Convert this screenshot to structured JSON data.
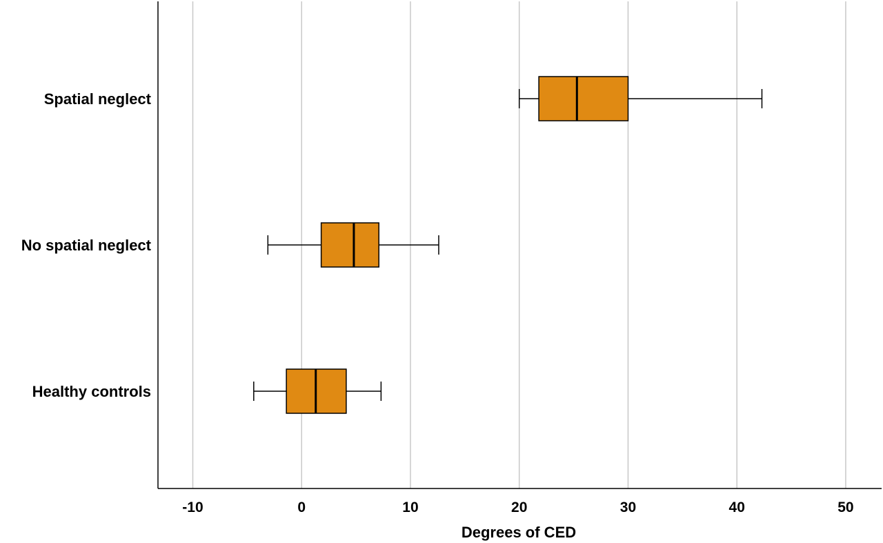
{
  "chart_data": {
    "type": "box",
    "orientation": "horizontal",
    "title": "",
    "xlabel": "Degrees of CED",
    "ylabel": "",
    "xlim": [
      -13.2,
      53.3
    ],
    "xticks": [
      -10,
      0,
      10,
      20,
      30,
      40,
      50
    ],
    "grid": "vertical",
    "box_color": "#E08A13",
    "categories": [
      "Spatial neglect",
      "No spatial neglect",
      "Healthy controls"
    ],
    "boxes": [
      {
        "category": "Spatial neglect",
        "whisker_low": 20.0,
        "q1": 21.8,
        "median": 25.3,
        "q3": 30.0,
        "whisker_high": 42.3
      },
      {
        "category": "No spatial neglect",
        "whisker_low": -3.1,
        "q1": 1.8,
        "median": 4.8,
        "q3": 7.1,
        "whisker_high": 12.6
      },
      {
        "category": "Healthy controls",
        "whisker_low": -4.4,
        "q1": -1.4,
        "median": 1.3,
        "q3": 4.1,
        "whisker_high": 7.3
      }
    ]
  }
}
